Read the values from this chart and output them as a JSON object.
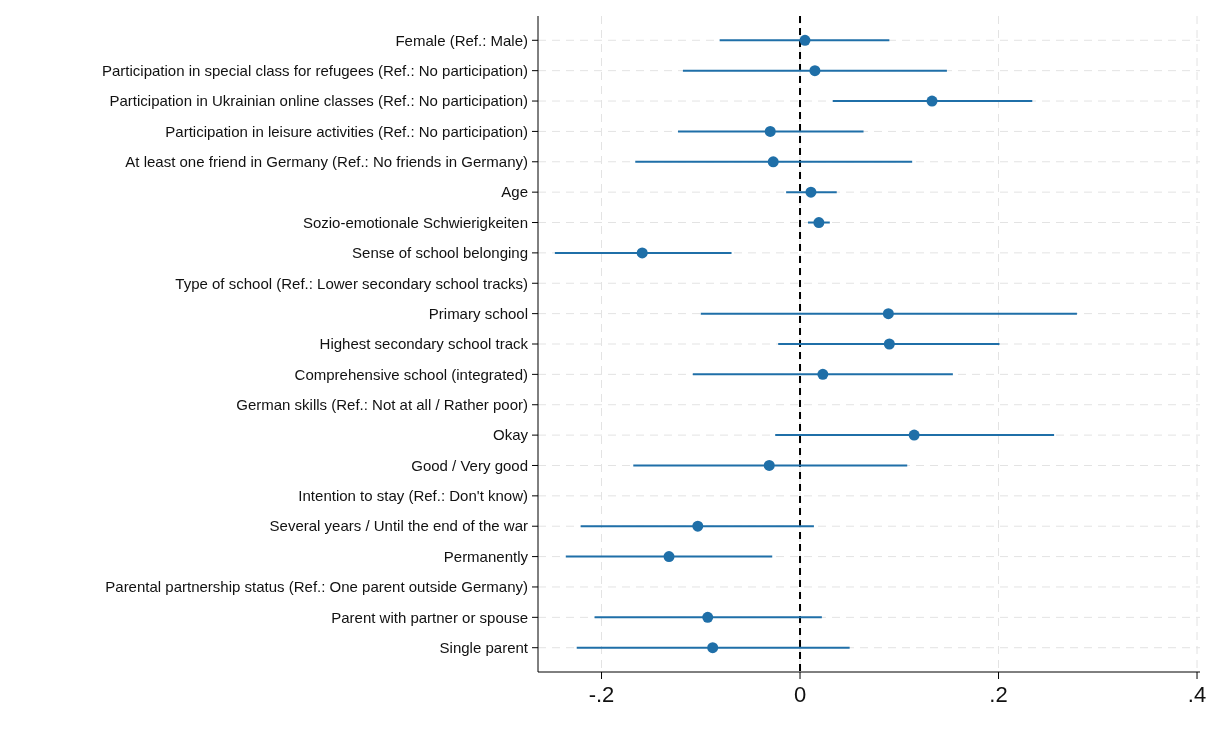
{
  "chart_data": {
    "type": "scatter",
    "orientation": "horizontal",
    "categories": [
      "Female (Ref.: Male)",
      "Participation in special class for refugees (Ref.: No participation)",
      "Participation in Ukrainian online classes (Ref.: No participation)",
      "Participation in leisure activities (Ref.: No participation)",
      "At least one friend in Germany (Ref.: No friends in Germany)",
      "Age",
      "Sozio-emotionale Schwierigkeiten",
      "Sense of school belonging",
      "Type of school (Ref.: Lower secondary school tracks)",
      "Primary school",
      "Highest secondary school track",
      "Comprehensive school (integrated)",
      "German skills (Ref.: Not at all / Rather poor)",
      "Okay",
      "Good / Very good",
      "Intention to stay (Ref.: Don't know)",
      "Several years / Until the end of the war",
      "Permanently",
      "Parental partnership status (Ref.: One parent outside Germany)",
      "Parent with partner or spouse",
      "Single parent"
    ],
    "series": [
      {
        "color": "#1f6fa8",
        "values": [
          0.005,
          0.015,
          0.133,
          -0.03,
          -0.027,
          0.011,
          0.019,
          -0.159,
          null,
          0.089,
          0.09,
          0.023,
          null,
          0.115,
          -0.031,
          null,
          -0.103,
          -0.132,
          null,
          -0.093,
          -0.088
        ],
        "errors": [
          [
            -0.081,
            0.09
          ],
          [
            -0.118,
            0.148
          ],
          [
            0.033,
            0.234
          ],
          [
            -0.123,
            0.064
          ],
          [
            -0.166,
            0.113
          ],
          [
            -0.014,
            0.037
          ],
          [
            0.008,
            0.03
          ],
          [
            -0.247,
            -0.069
          ],
          null,
          [
            -0.1,
            0.279
          ],
          [
            -0.022,
            0.201
          ],
          [
            -0.108,
            0.154
          ],
          null,
          [
            -0.025,
            0.256
          ],
          [
            -0.168,
            0.108
          ],
          null,
          [
            -0.221,
            0.014
          ],
          [
            -0.236,
            -0.028
          ],
          null,
          [
            -0.207,
            0.022
          ],
          [
            -0.225,
            0.05
          ]
        ]
      }
    ],
    "xlim": [
      -0.264,
      0.403
    ],
    "xticks": [
      {
        "value": -0.2,
        "label": "-.2"
      },
      0,
      {
        "value": 0.2,
        "label": ".2"
      },
      {
        "value": 0.4,
        "label": ".4"
      }
    ],
    "ref_lines": [
      {
        "axis": "x",
        "value": 0,
        "color": "#000000",
        "line_style": "dashed"
      }
    ],
    "grid": true,
    "marker": "circle"
  }
}
